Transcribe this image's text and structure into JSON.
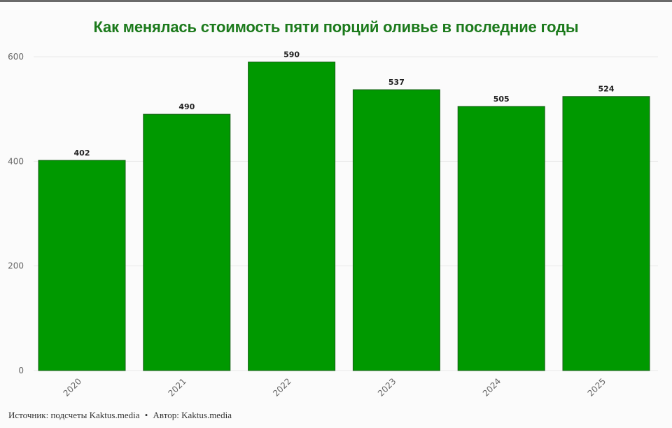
{
  "title": "Как менялась стоимость пяти порций оливье в последние годы",
  "footer": {
    "source": "Источник: подсчеты Kaktus.media",
    "separator": "•",
    "author": "Автор: Kaktus.media"
  },
  "colors": {
    "bar": "#009900",
    "bar_stroke": "#1a5e1a",
    "title": "#1c7a1c",
    "axis_text": "#666666",
    "label_text": "#222222",
    "grid": "#eaeaea"
  },
  "chart_data": {
    "type": "bar",
    "categories": [
      "2020",
      "2021",
      "2022",
      "2023",
      "2024",
      "2025"
    ],
    "values": [
      402,
      490,
      590,
      537,
      505,
      524
    ],
    "data_labels": [
      "402",
      "490",
      "590",
      "537",
      "505",
      "524"
    ],
    "y_ticks": [
      0,
      200,
      400,
      600
    ],
    "ylim": [
      0,
      600
    ],
    "title": "Как менялась стоимость пяти порций оливье в последние годы",
    "xlabel": "",
    "ylabel": "",
    "grid": true,
    "legend": "none"
  }
}
